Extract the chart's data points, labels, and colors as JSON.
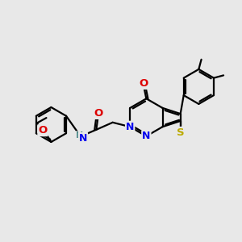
{
  "background_color": "#e8e8e8",
  "atom_colors": {
    "C": "#000000",
    "N": "#0000ee",
    "O": "#dd0000",
    "S": "#bbaa00",
    "H": "#4a8888"
  },
  "bond_color": "#000000",
  "bond_width": 1.6,
  "figsize": [
    3.0,
    3.0
  ],
  "dpi": 100
}
